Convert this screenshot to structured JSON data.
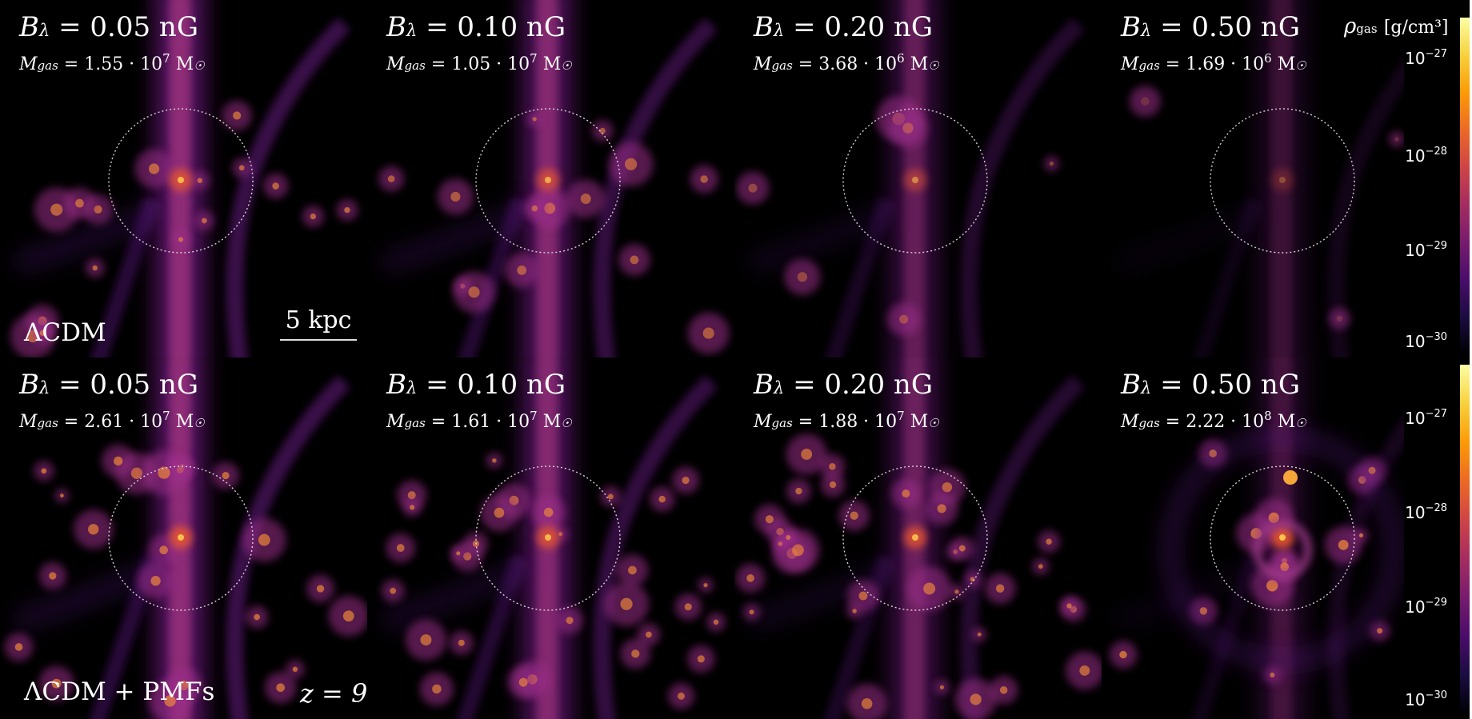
{
  "panels": [
    {
      "B": "B_λ = 0.05 nG",
      "b_sym": "B",
      "b_sub": "λ",
      "b_val": "= 0.05 nG",
      "m_sym": "M",
      "m_sub": "gas",
      "m_val": "= 1.55 · 10",
      "m_exp": "7",
      "m_unit": "M",
      "m_unit_sub": "☉"
    },
    {
      "b_sym": "B",
      "b_sub": "λ",
      "b_val": "= 0.10 nG",
      "m_sym": "M",
      "m_sub": "gas",
      "m_val": "= 1.05 · 10",
      "m_exp": "7",
      "m_unit": "M",
      "m_unit_sub": "☉"
    },
    {
      "b_sym": "B",
      "b_sub": "λ",
      "b_val": "= 0.20 nG",
      "m_sym": "M",
      "m_sub": "gas",
      "m_val": "= 3.68 · 10",
      "m_exp": "6",
      "m_unit": "M",
      "m_unit_sub": "☉"
    },
    {
      "b_sym": "B",
      "b_sub": "λ",
      "b_val": "= 0.50 nG",
      "m_sym": "M",
      "m_sub": "gas",
      "m_val": "= 1.69 · 10",
      "m_exp": "6",
      "m_unit": "M",
      "m_unit_sub": "☉"
    },
    {
      "b_sym": "B",
      "b_sub": "λ",
      "b_val": "= 0.05 nG",
      "m_sym": "M",
      "m_sub": "gas",
      "m_val": "= 2.61 · 10",
      "m_exp": "7",
      "m_unit": "M",
      "m_unit_sub": "☉"
    },
    {
      "b_sym": "B",
      "b_sub": "λ",
      "b_val": "= 0.10 nG",
      "m_sym": "M",
      "m_sub": "gas",
      "m_val": "= 1.61 · 10",
      "m_exp": "7",
      "m_unit": "M",
      "m_unit_sub": "☉"
    },
    {
      "b_sym": "B",
      "b_sub": "λ",
      "b_val": "= 0.20 nG",
      "m_sym": "M",
      "m_sub": "gas",
      "m_val": "= 1.88 · 10",
      "m_exp": "7",
      "m_unit": "M",
      "m_unit_sub": "☉"
    },
    {
      "b_sym": "B",
      "b_sub": "λ",
      "b_val": "= 0.50 nG",
      "m_sym": "M",
      "m_sub": "gas",
      "m_val": "= 2.22 · 10",
      "m_exp": "8",
      "m_unit": "M",
      "m_unit_sub": "☉"
    }
  ],
  "row_labels": [
    "ΛCDM",
    "ΛCDM + PMFs"
  ],
  "scale_bar": "5 kpc",
  "redshift_label": "z = 9",
  "colorbar": {
    "title_sym": "ρ",
    "title_sub": "gas",
    "title_unit": "[g/cm³]",
    "ticks": [
      {
        "base": "10",
        "exp": "−27"
      },
      {
        "base": "10",
        "exp": "−28"
      },
      {
        "base": "10",
        "exp": "−29"
      },
      {
        "base": "10",
        "exp": "−30"
      }
    ],
    "colors": [
      "#000004",
      "#1b0c41",
      "#4a0c6b",
      "#781c6d",
      "#a52c60",
      "#cf4446",
      "#ed6925",
      "#fb9b06",
      "#f7d13d",
      "#fcffa4"
    ]
  }
}
